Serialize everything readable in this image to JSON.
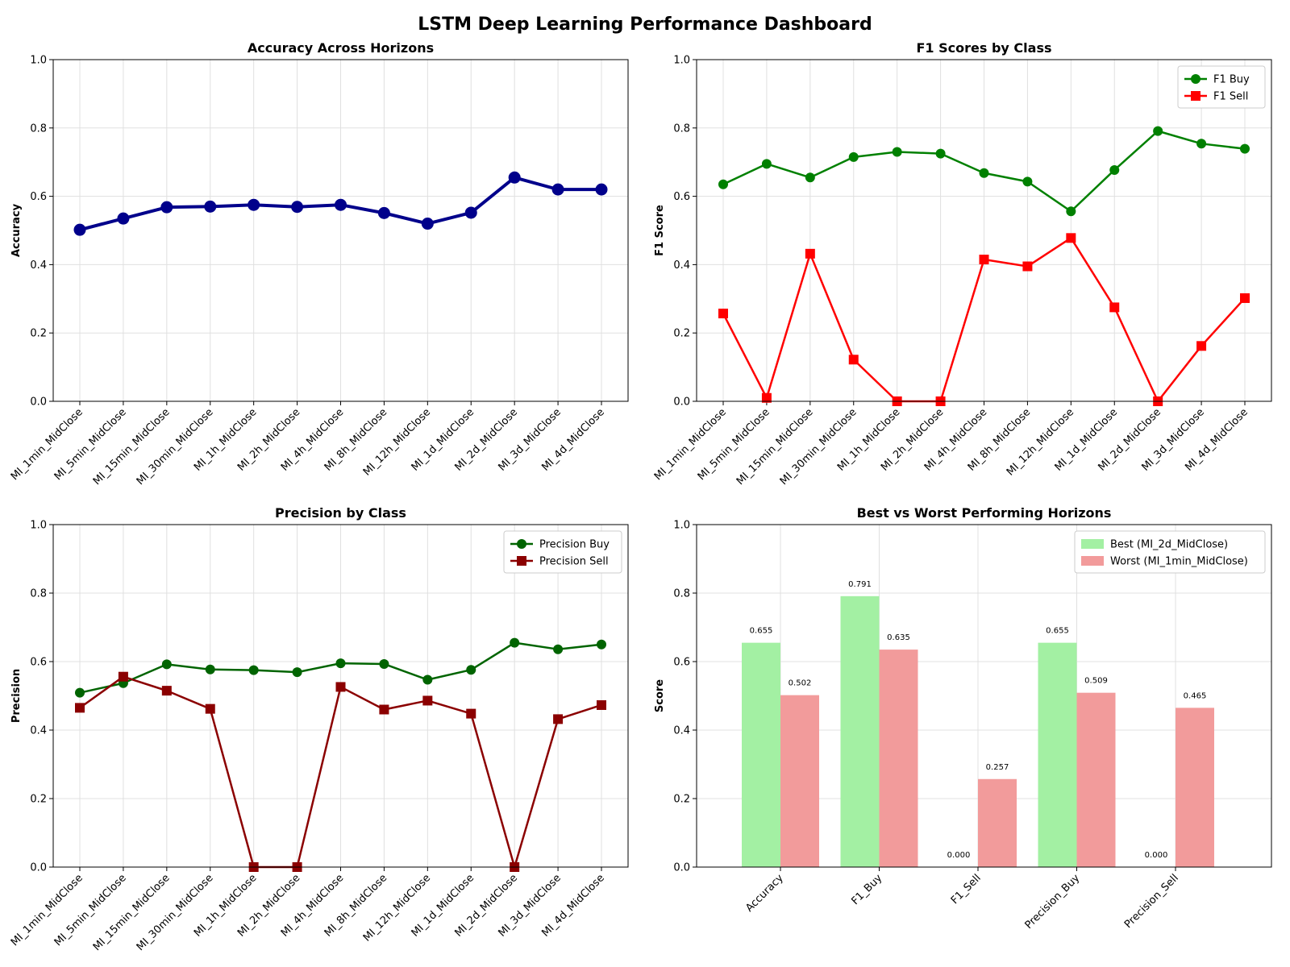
{
  "title": "LSTM Deep Learning Performance Dashboard",
  "colors": {
    "accuracy": "#00008b",
    "f1_buy": "#008000",
    "f1_sell": "#ff0000",
    "precision_buy": "#006400",
    "precision_sell": "#8b0000",
    "best": "#a3f0a3",
    "worst": "#f29b9b",
    "grid": "#e0e0e0"
  },
  "chart_data": [
    {
      "type": "line",
      "title": "Accuracy Across Horizons",
      "ylabel": "Accuracy",
      "ylim": [
        0,
        1
      ],
      "yticks": [
        "0.0",
        "0.2",
        "0.4",
        "0.6",
        "0.8",
        "1.0"
      ],
      "grid": true,
      "categories": [
        "MI_1min_MidClose",
        "MI_5min_MidClose",
        "MI_15min_MidClose",
        "MI_30min_MidClose",
        "MI_1h_MidClose",
        "MI_2h_MidClose",
        "MI_4h_MidClose",
        "MI_8h_MidClose",
        "MI_12h_MidClose",
        "MI_1d_MidClose",
        "MI_2d_MidClose",
        "MI_3d_MidClose",
        "MI_4d_MidClose"
      ],
      "series": [
        {
          "values": [
            0.502,
            0.535,
            0.568,
            0.57,
            0.575,
            0.569,
            0.575,
            0.551,
            0.52,
            0.552,
            0.655,
            0.62,
            0.62
          ]
        }
      ]
    },
    {
      "type": "line",
      "title": "F1 Scores by Class",
      "ylabel": "F1 Score",
      "ylim": [
        0,
        1
      ],
      "yticks": [
        "0.0",
        "0.2",
        "0.4",
        "0.6",
        "0.8",
        "1.0"
      ],
      "grid": true,
      "legend": "top-right",
      "categories": [
        "MI_1min_MidClose",
        "MI_5min_MidClose",
        "MI_15min_MidClose",
        "MI_30min_MidClose",
        "MI_1h_MidClose",
        "MI_2h_MidClose",
        "MI_4h_MidClose",
        "MI_8h_MidClose",
        "MI_12h_MidClose",
        "MI_1d_MidClose",
        "MI_2d_MidClose",
        "MI_3d_MidClose",
        "MI_4d_MidClose"
      ],
      "series": [
        {
          "name": "F1 Buy",
          "marker": "circle",
          "values": [
            0.635,
            0.695,
            0.655,
            0.715,
            0.73,
            0.725,
            0.668,
            0.643,
            0.556,
            0.677,
            0.791,
            0.754,
            0.739
          ]
        },
        {
          "name": "F1 Sell",
          "marker": "square",
          "values": [
            0.257,
            0.01,
            0.432,
            0.122,
            0.0,
            0.0,
            0.415,
            0.395,
            0.478,
            0.275,
            0.0,
            0.162,
            0.302
          ]
        }
      ]
    },
    {
      "type": "line",
      "title": "Precision by Class",
      "ylabel": "Precision",
      "ylim": [
        0,
        1
      ],
      "yticks": [
        "0.0",
        "0.2",
        "0.4",
        "0.6",
        "0.8",
        "1.0"
      ],
      "grid": true,
      "legend": "top-right",
      "categories": [
        "MI_1min_MidClose",
        "MI_5min_MidClose",
        "MI_15min_MidClose",
        "MI_30min_MidClose",
        "MI_1h_MidClose",
        "MI_2h_MidClose",
        "MI_4h_MidClose",
        "MI_8h_MidClose",
        "MI_12h_MidClose",
        "MI_1d_MidClose",
        "MI_2d_MidClose",
        "MI_3d_MidClose",
        "MI_4d_MidClose"
      ],
      "series": [
        {
          "name": "Precision Buy",
          "marker": "circle",
          "values": [
            0.509,
            0.537,
            0.592,
            0.577,
            0.575,
            0.569,
            0.595,
            0.593,
            0.547,
            0.576,
            0.655,
            0.636,
            0.65
          ]
        },
        {
          "name": "Precision Sell",
          "marker": "square",
          "values": [
            0.465,
            0.556,
            0.515,
            0.462,
            0.0,
            0.0,
            0.526,
            0.46,
            0.486,
            0.448,
            0.0,
            0.432,
            0.473
          ]
        }
      ]
    },
    {
      "type": "bar",
      "title": "Best vs Worst Performing Horizons",
      "ylabel": "Score",
      "ylim": [
        0,
        1
      ],
      "yticks": [
        "0.0",
        "0.2",
        "0.4",
        "0.6",
        "0.8",
        "1.0"
      ],
      "grid": true,
      "legend": "top-right",
      "categories": [
        "Accuracy",
        "F1_Buy",
        "F1_Sell",
        "Precision_Buy",
        "Precision_Sell"
      ],
      "series": [
        {
          "name": "Best (MI_2d_MidClose)",
          "values": [
            0.655,
            0.791,
            0.0,
            0.655,
            0.0
          ],
          "labels": [
            "0.655",
            "0.791",
            "0.000",
            "0.655",
            "0.000"
          ]
        },
        {
          "name": "Worst (MI_1min_MidClose)",
          "values": [
            0.502,
            0.635,
            0.257,
            0.509,
            0.465
          ],
          "labels": [
            "0.502",
            "0.635",
            "0.257",
            "0.509",
            "0.465"
          ]
        }
      ]
    }
  ]
}
